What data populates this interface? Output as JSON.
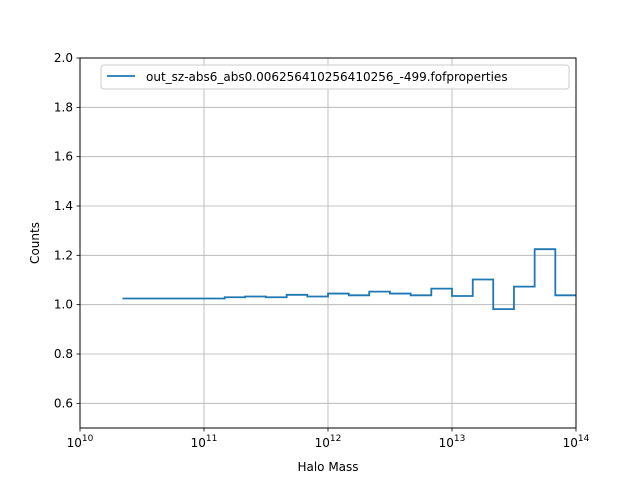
{
  "chart_data": {
    "type": "line",
    "drawstyle": "steps-post",
    "xscale": "log",
    "xlabel": "Halo Mass",
    "ylabel": "Counts",
    "xlim": [
      10000000000.0,
      100000000000000.0
    ],
    "ylim": [
      0.5,
      2.0
    ],
    "grid": true,
    "legend_position": "top-right",
    "x_ticks": [
      {
        "value": 10000000000.0,
        "base": "10",
        "exp": "10"
      },
      {
        "value": 100000000000.0,
        "base": "10",
        "exp": "11"
      },
      {
        "value": 1000000000000.0,
        "base": "10",
        "exp": "12"
      },
      {
        "value": 10000000000000.0,
        "base": "10",
        "exp": "13"
      },
      {
        "value": 100000000000000.0,
        "base": "10",
        "exp": "14"
      }
    ],
    "y_ticks": [
      {
        "value": 0.6,
        "label": "0.6"
      },
      {
        "value": 0.8,
        "label": "0.8"
      },
      {
        "value": 1.0,
        "label": "1.0"
      },
      {
        "value": 1.2,
        "label": "1.2"
      },
      {
        "value": 1.4,
        "label": "1.4"
      },
      {
        "value": 1.6,
        "label": "1.6"
      },
      {
        "value": 1.8,
        "label": "1.8"
      },
      {
        "value": 2.0,
        "label": "2.0"
      }
    ],
    "series": [
      {
        "name": "out_sz-abs6_abs0.006256410256410256_-499.fofproperties",
        "color": "#1f77b4",
        "x": [
          22000000000.0,
          147000000000.0,
          215000000000.0,
          316000000000.0,
          464000000000.0,
          681000000000.0,
          1000000000000.0,
          1470000000000.0,
          2150000000000.0,
          3160000000000.0,
          4640000000000.0,
          6810000000000.0,
          10000000000000.0,
          14700000000000.0,
          21500000000000.0,
          31600000000000.0,
          46400000000000.0,
          68100000000000.0,
          100000000000000.0
        ],
        "y": [
          1.025,
          1.03,
          1.033,
          1.03,
          1.04,
          1.033,
          1.045,
          1.038,
          1.053,
          1.045,
          1.038,
          1.065,
          1.035,
          1.102,
          0.982,
          1.073,
          1.225,
          1.038,
          1.038
        ]
      }
    ]
  }
}
